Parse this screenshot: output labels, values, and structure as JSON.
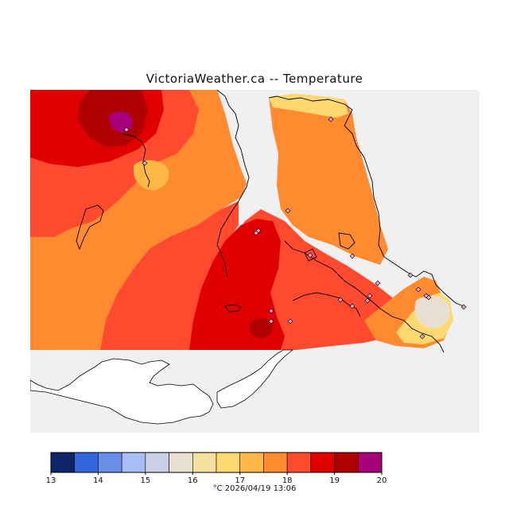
{
  "title": "VictoriaWeather.ca -- Temperature",
  "timestamp": "°C   2026/04/19 13:06",
  "colors": {
    "water": "#f0f0f0",
    "land": "#ffffff",
    "coast": "#000000",
    "station": "#e8a0d0"
  },
  "legend": {
    "min": 13,
    "max": 20,
    "tick_labels": [
      "13",
      "14",
      "15",
      "16",
      "17",
      "18",
      "19",
      "20"
    ],
    "colors": [
      "#0d2668",
      "#3366dd",
      "#6a8fe8",
      "#a8bdf5",
      "#cad1e6",
      "#e8dfd0",
      "#f5e0a0",
      "#ffd870",
      "#ffb845",
      "#ff8a30",
      "#ff4a30",
      "#e00000",
      "#b00000",
      "#a8007a"
    ]
  }
}
